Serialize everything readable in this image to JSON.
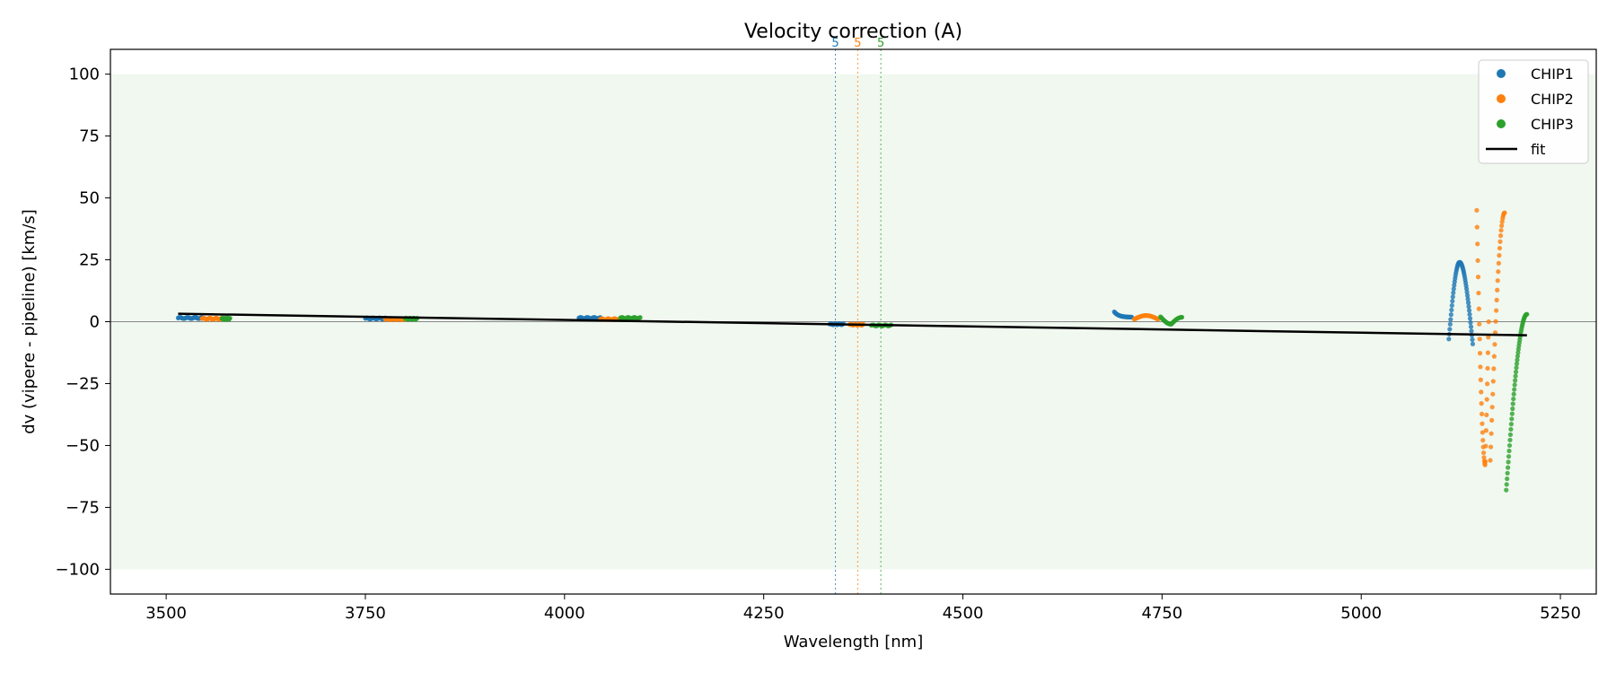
{
  "chart_data": {
    "type": "scatter",
    "title": "Velocity correction (A)",
    "xlabel": "Wavelength [nm]",
    "ylabel": "dv (vipere - pipeline) [km/s]",
    "xlim": [
      3430,
      5295
    ],
    "ylim": [
      -110,
      110
    ],
    "xticks": [
      3500,
      3750,
      4000,
      4250,
      4500,
      4750,
      5000,
      5250
    ],
    "yticks": [
      -100,
      -75,
      -50,
      -25,
      0,
      25,
      50,
      75,
      100
    ],
    "tick_labels": {
      "x": [
        "3500",
        "3750",
        "4000",
        "4250",
        "4500",
        "4750",
        "5000",
        "5250"
      ],
      "y": [
        "−100",
        "−75",
        "−50",
        "−25",
        "0",
        "25",
        "50",
        "75",
        "100"
      ]
    },
    "shaded_band": {
      "y_from": -100,
      "y_to": 100,
      "color": "#2ca02c"
    },
    "zero_line": 0,
    "legend_position": "top-right",
    "colors": {
      "CHIP1": "#1f77b4",
      "CHIP2": "#ff7f0e",
      "CHIP3": "#2ca02c",
      "fit": "#000000"
    },
    "series": [
      {
        "name": "CHIP1",
        "color": "#1f77b4",
        "segments": [
          {
            "x_from": 3515,
            "x_to": 3545,
            "kind": "flat",
            "level": 1.5,
            "n": 40
          },
          {
            "x_from": 3750,
            "x_to": 3775,
            "kind": "flat",
            "level": 1.3,
            "n": 30
          },
          {
            "x_from": 4018,
            "x_to": 4045,
            "kind": "flat",
            "level": 1.5,
            "n": 30
          },
          {
            "x_from": 4333,
            "x_to": 4350,
            "kind": "flat",
            "level": -1.0,
            "n": 20
          },
          {
            "x_from": 4690,
            "x_to": 4712,
            "kind": "decay",
            "start": 4.0,
            "end": 1.8,
            "n": 30
          },
          {
            "x_from": 5110,
            "x_to": 5140,
            "kind": "bump",
            "start": -7,
            "peak": 24,
            "end": -9,
            "n": 55
          }
        ]
      },
      {
        "name": "CHIP2",
        "color": "#ff7f0e",
        "segments": [
          {
            "x_from": 3545,
            "x_to": 3570,
            "kind": "flat",
            "level": 1.2,
            "n": 35
          },
          {
            "x_from": 3775,
            "x_to": 3800,
            "kind": "flat",
            "level": 1.0,
            "n": 30
          },
          {
            "x_from": 4045,
            "x_to": 4070,
            "kind": "flat",
            "level": 1.0,
            "n": 30
          },
          {
            "x_from": 4358,
            "x_to": 4375,
            "kind": "flat",
            "level": -1.2,
            "n": 20
          },
          {
            "x_from": 4715,
            "x_to": 4745,
            "kind": "arch",
            "start": 1.0,
            "peak": 2.5,
            "end": 1.0,
            "n": 35
          },
          {
            "x_from": 5145,
            "x_to": 5160,
            "kind": "dip",
            "start": 45,
            "trough": -58,
            "end": 0,
            "n": 34
          },
          {
            "x_from": 5162,
            "x_to": 5180,
            "kind": "rise",
            "start": -56,
            "end": 44,
            "n": 30
          }
        ]
      },
      {
        "name": "CHIP3",
        "color": "#2ca02c",
        "segments": [
          {
            "x_from": 3570,
            "x_to": 3580,
            "kind": "flat",
            "level": 1.2,
            "n": 25
          },
          {
            "x_from": 3800,
            "x_to": 3815,
            "kind": "flat",
            "level": 1.2,
            "n": 25
          },
          {
            "x_from": 4070,
            "x_to": 4095,
            "kind": "flat",
            "level": 1.5,
            "n": 30
          },
          {
            "x_from": 4385,
            "x_to": 4410,
            "kind": "flat",
            "level": -1.5,
            "n": 20
          },
          {
            "x_from": 4748,
            "x_to": 4775,
            "kind": "wave",
            "start": 2.0,
            "trough": -1.0,
            "end": 1.8,
            "n": 35
          },
          {
            "x_from": 5182,
            "x_to": 5208,
            "kind": "rise",
            "start": -68,
            "end": 3,
            "n": 50
          }
        ]
      }
    ],
    "fit": {
      "name": "fit",
      "color": "#000000",
      "x": [
        3515,
        5208
      ],
      "y": [
        3.2,
        -5.5
      ]
    },
    "order_markers": [
      {
        "label": "5",
        "x": 4340,
        "color": "#1f77b4"
      },
      {
        "label": "5",
        "x": 4368,
        "color": "#ff7f0e"
      },
      {
        "label": "5",
        "x": 4397,
        "color": "#2ca02c"
      }
    ]
  }
}
